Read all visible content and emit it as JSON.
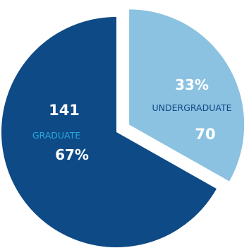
{
  "chart_data": {
    "type": "pie",
    "exploded": true,
    "slices": [
      {
        "category": "GRADUATE",
        "value": 141,
        "percent": "67%",
        "count_label": "141",
        "color": "#0e4a86",
        "count_color": "#ffffff",
        "category_color": "#2aa8e0",
        "percent_color": "#ffffff"
      },
      {
        "category": "UNDERGRADUATE",
        "value": 70,
        "percent": "33%",
        "count_label": "70",
        "color": "#8bc1e1",
        "count_color": "#ffffff",
        "category_color": "#0e4a86",
        "percent_color": "#ffffff"
      }
    ]
  }
}
